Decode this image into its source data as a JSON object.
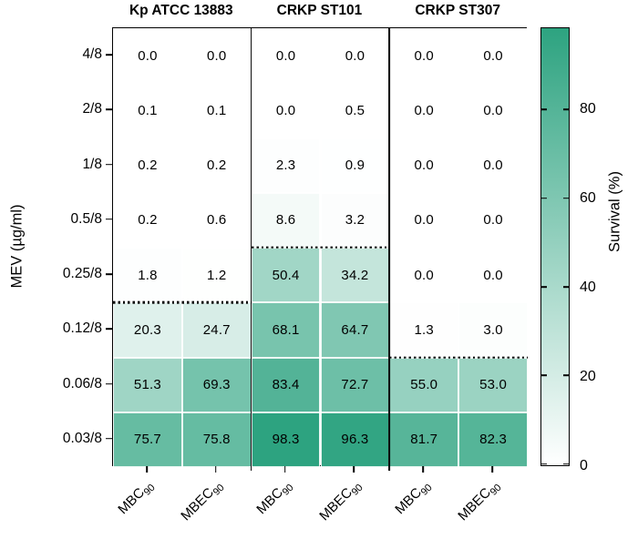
{
  "chart_data": {
    "type": "heatmap",
    "ylabel": "MEV (µg/ml)",
    "row_labels": [
      "4/8",
      "2/8",
      "1/8",
      "0.5/8",
      "0.25/8",
      "0.12/8",
      "0.06/8",
      "0.03/8"
    ],
    "column_sub_labels": [
      {
        "base": "MBC",
        "sub": "90"
      },
      {
        "base": "MBEC",
        "sub": "90"
      }
    ],
    "groups": [
      {
        "name": "Kp ATCC 13883",
        "dotted_line_above_row": 5,
        "values": [
          [
            0.0,
            0.0
          ],
          [
            0.1,
            0.1
          ],
          [
            0.2,
            0.2
          ],
          [
            0.2,
            0.6
          ],
          [
            1.8,
            1.2
          ],
          [
            20.3,
            24.7
          ],
          [
            51.3,
            69.3
          ],
          [
            75.7,
            75.8
          ]
        ]
      },
      {
        "name": "CRKP ST101",
        "dotted_line_above_row": 4,
        "values": [
          [
            0.0,
            0.0
          ],
          [
            0.0,
            0.5
          ],
          [
            2.3,
            0.9
          ],
          [
            8.6,
            3.2
          ],
          [
            50.4,
            34.2
          ],
          [
            68.1,
            64.7
          ],
          [
            83.4,
            72.7
          ],
          [
            98.3,
            96.3
          ]
        ]
      },
      {
        "name": "CRKP ST307",
        "dotted_line_above_row": 6,
        "values": [
          [
            0.0,
            0.0
          ],
          [
            0.0,
            0.0
          ],
          [
            0.0,
            0.0
          ],
          [
            0.0,
            0.0
          ],
          [
            0.0,
            0.0
          ],
          [
            1.3,
            3.0
          ],
          [
            55.0,
            53.0
          ],
          [
            81.7,
            82.3
          ]
        ]
      }
    ],
    "colorbar": {
      "label": "Survival (%)",
      "ticks": [
        0,
        20,
        40,
        60,
        80
      ],
      "vmin": 0,
      "vmax": 98.3,
      "color_low": "#ffffff",
      "color_high": "#2da380"
    },
    "value_decimals": 1
  }
}
